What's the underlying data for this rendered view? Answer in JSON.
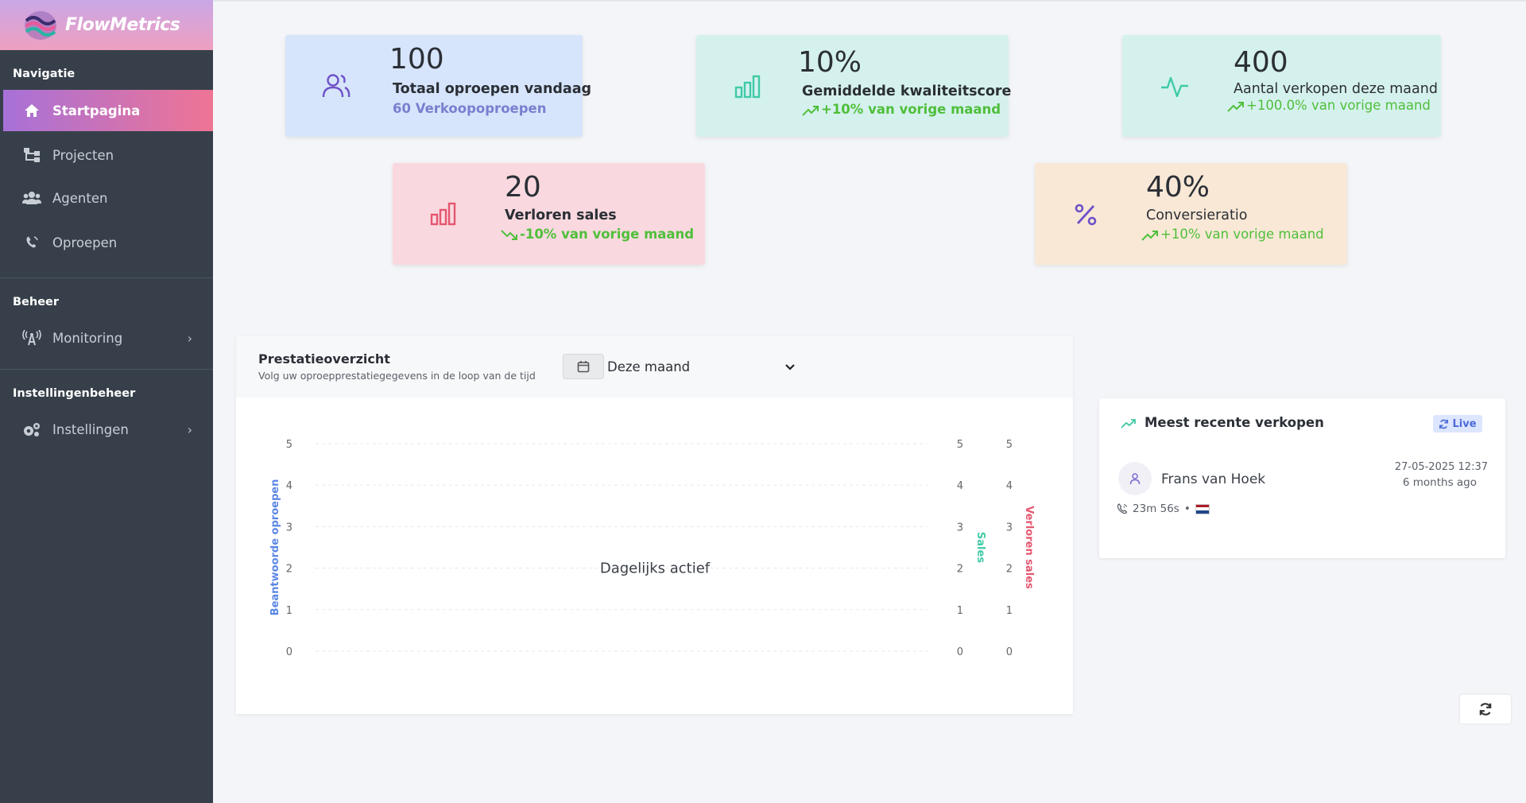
{
  "app": {
    "name": "FlowMetrics"
  },
  "sidebar": {
    "sections": [
      {
        "title": "Navigatie"
      },
      {
        "title": "Beheer"
      },
      {
        "title": "Instellingenbeheer"
      }
    ],
    "items": [
      {
        "label": "Startpagina",
        "icon": "home-icon",
        "active": true
      },
      {
        "label": "Projecten",
        "icon": "sitemap-icon"
      },
      {
        "label": "Agenten",
        "icon": "users-icon"
      },
      {
        "label": "Oproepen",
        "icon": "phone-icon"
      },
      {
        "label": "Monitoring",
        "icon": "broadcast-tower-icon",
        "has_submenu": true
      },
      {
        "label": "Instellingen",
        "icon": "cogs-icon",
        "has_submenu": true
      }
    ]
  },
  "stats": [
    {
      "value": "100",
      "label": "Totaal oproepen vandaag",
      "sub": "60 Verkoopoproepen",
      "icon": "users-icon",
      "bg": "#d6e5fb",
      "accent": "#6f52c8"
    },
    {
      "value": "10%",
      "label": "Gemiddelde kwaliteitscore",
      "sub": "+10% van vorige maand",
      "icon": "bar-chart-icon",
      "bg": "#d5f1ee",
      "accent": "#3fcaa6"
    },
    {
      "value": "400",
      "label": "Aantal verkopen deze maand",
      "sub": "+100.0% van vorige maand",
      "icon": "activity-icon",
      "bg": "#d5f1ee",
      "accent": "#3fcaa6"
    },
    {
      "value": "20",
      "label": "Verloren sales",
      "sub": "-10% van vorige maand",
      "icon": "bar-chart-icon",
      "bg": "#f9d9df",
      "accent": "#e5566f"
    },
    {
      "value": "40%",
      "label": "Conversieratio",
      "sub": "+10% van vorige maand",
      "icon": "percent-icon",
      "bg": "#f9e8d6",
      "accent": "#6f52c8"
    }
  ],
  "colors": {
    "positive": "#4fbf3a",
    "sidebar": "#37404a",
    "active_from": "#a771d8",
    "active_to": "#ef7494"
  },
  "performance": {
    "title": "Prestatieoverzicht",
    "subtitle": "Volg uw oproepprestatiegegevens in de loop van de tijd",
    "period": "Deze maand",
    "empty_label": "Dagelijks actief"
  },
  "chart_data": {
    "type": "line",
    "x": [],
    "series": [],
    "yaxes": [
      {
        "label": "Beantwoorde oproepen",
        "side": "left",
        "ylim": [
          0,
          5
        ],
        "ticks": [
          "0",
          "1",
          "2",
          "3",
          "4",
          "5"
        ],
        "color": "#5b86e5"
      },
      {
        "label": "Sales",
        "side": "right",
        "ylim": [
          0,
          5
        ],
        "ticks": [
          "0",
          "1",
          "2",
          "3",
          "4",
          "5"
        ],
        "color": "#3fcaa6"
      },
      {
        "label": "Verloren sales",
        "side": "right",
        "ylim": [
          0,
          5
        ],
        "ticks": [
          "0",
          "1",
          "2",
          "3",
          "4",
          "5"
        ],
        "color": "#e5566f"
      }
    ],
    "grid": true,
    "annotation": "Dagelijks actief"
  },
  "recent_sales": {
    "title": "Meest recente verkopen",
    "badge": "Live",
    "entries": [
      {
        "name": "Frans van Hoek",
        "date": "27-05-2025 12:37",
        "ago": "6 months ago",
        "duration": "23m 56s",
        "separator": "•",
        "country": "NL"
      }
    ]
  }
}
